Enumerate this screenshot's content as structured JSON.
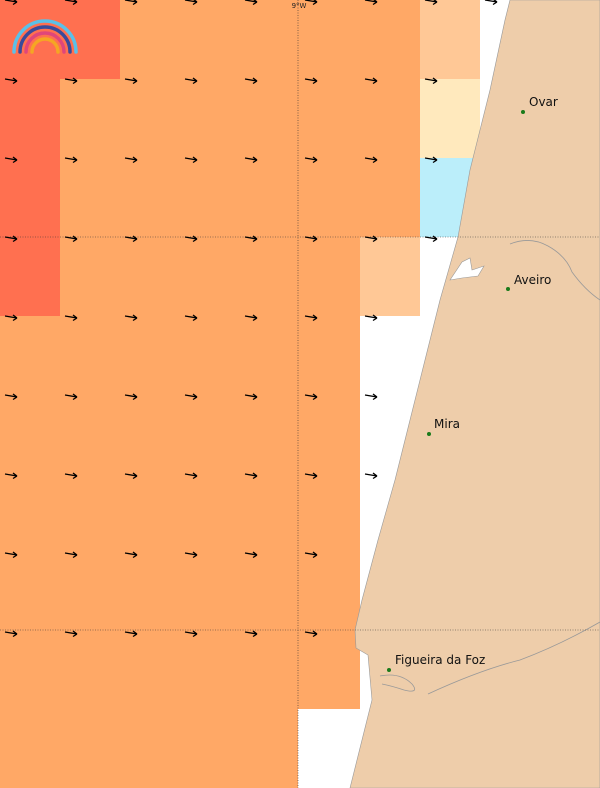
{
  "map": {
    "longitude_label": "9°W",
    "places": [
      {
        "name": "Ovar"
      },
      {
        "name": "Aveiro"
      },
      {
        "name": "Mira"
      },
      {
        "name": "Figueira da Foz"
      }
    ]
  }
}
